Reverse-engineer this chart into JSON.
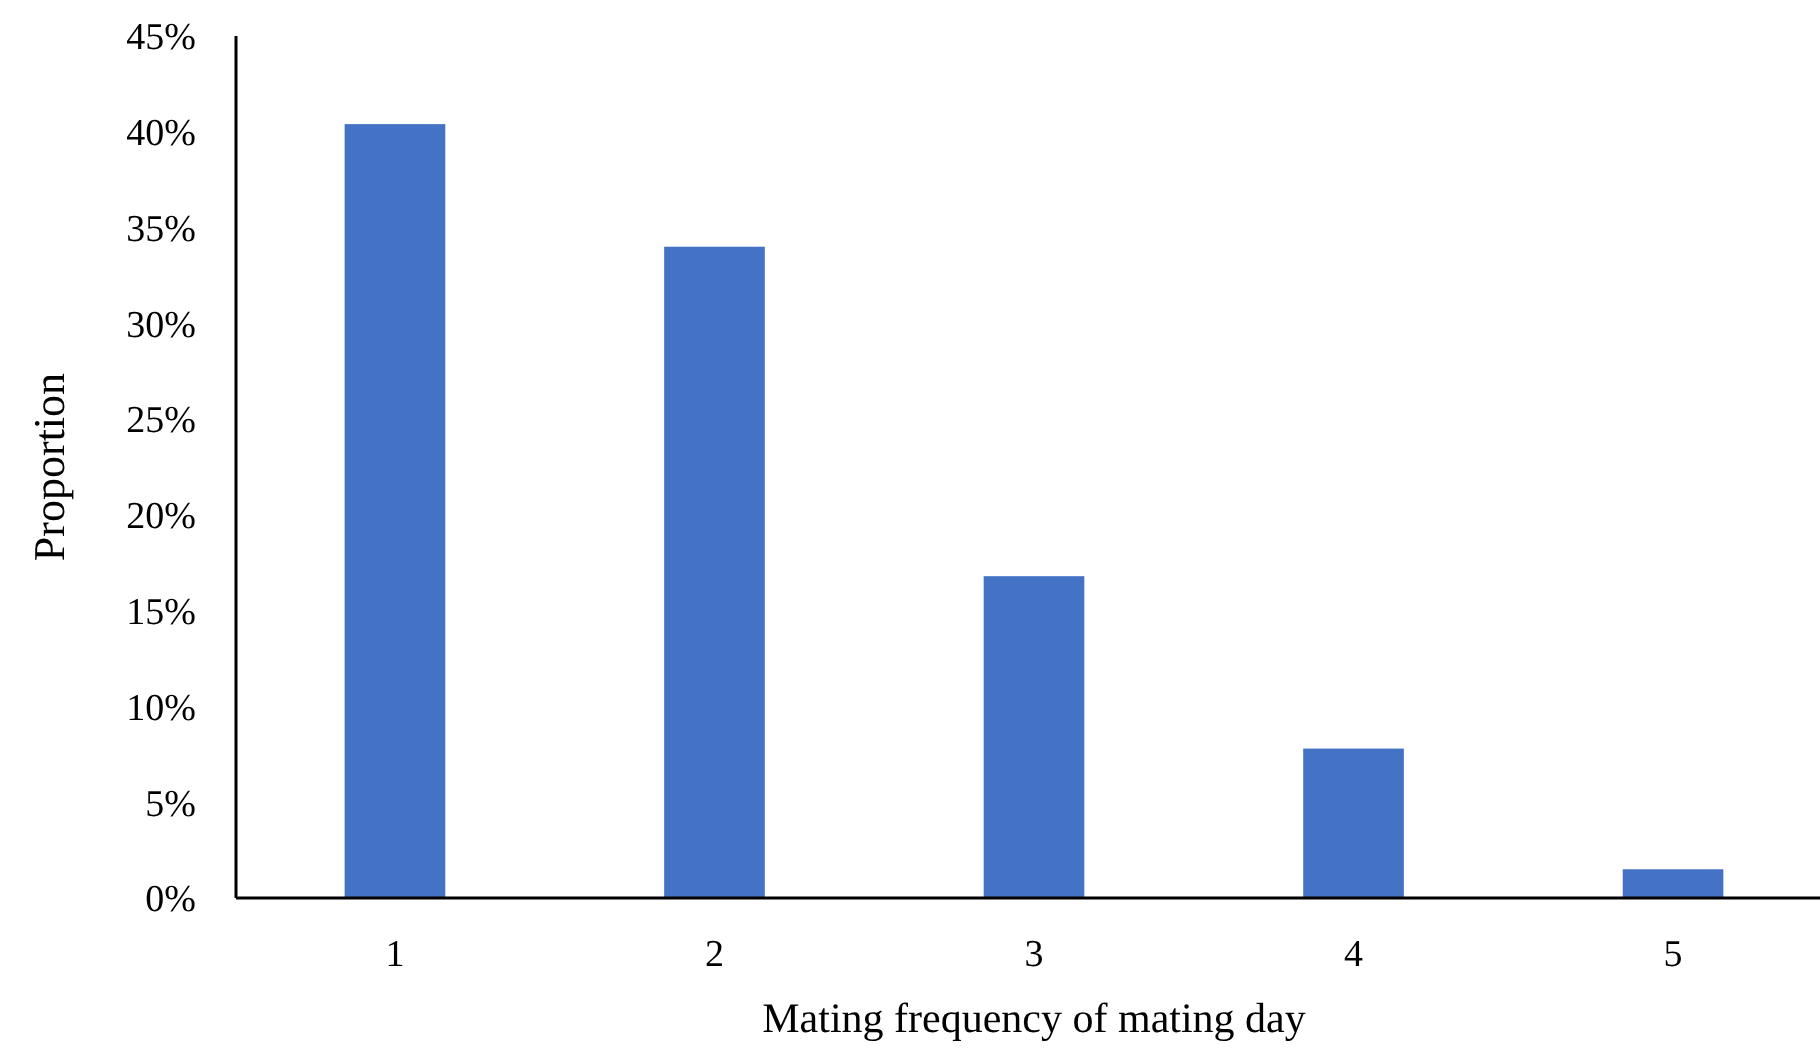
{
  "chart_data": {
    "type": "bar",
    "xlabel": "Mating frequency of mating day",
    "ylabel": "Proportion",
    "categories": [
      "1",
      "2",
      "3",
      "4",
      "5"
    ],
    "values": [
      40.4,
      34.0,
      16.8,
      7.8,
      1.5
    ],
    "color": "#4472c4",
    "ylim": [
      0,
      45
    ],
    "yticks": [
      {
        "value": 0,
        "label": "0%"
      },
      {
        "value": 5,
        "label": "5%"
      },
      {
        "value": 10,
        "label": "10%"
      },
      {
        "value": 15,
        "label": "15%"
      },
      {
        "value": 20,
        "label": "20%"
      },
      {
        "value": 25,
        "label": "25%"
      },
      {
        "value": 30,
        "label": "30%"
      },
      {
        "value": 35,
        "label": "35%"
      },
      {
        "value": 40,
        "label": "40%"
      },
      {
        "value": 45,
        "label": "45%"
      }
    ],
    "grid": false
  }
}
